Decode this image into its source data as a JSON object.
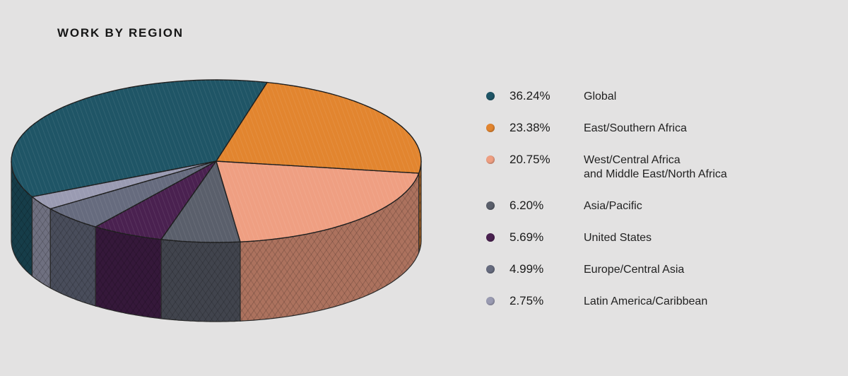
{
  "title": "WORK BY REGION",
  "chart_data": {
    "type": "pie",
    "title": "WORK BY REGION",
    "slices": [
      {
        "label": "Global",
        "value": 36.24,
        "display": "36.24%",
        "color": "#1f5566"
      },
      {
        "label": "East/Southern Africa",
        "value": 23.38,
        "display": "23.38%",
        "color": "#e2852f"
      },
      {
        "label": "West/Central Africa\nand Middle East/North Africa",
        "value": 20.75,
        "display": "20.75%",
        "color": "#ef9f82"
      },
      {
        "label": "Asia/Pacific",
        "value": 6.2,
        "display": "6.20%",
        "color": "#5a5f6b"
      },
      {
        "label": "United States",
        "value": 5.69,
        "display": "5.69%",
        "color": "#4a2150"
      },
      {
        "label": "Europe/Central Asia",
        "value": 4.99,
        "display": "4.99%",
        "color": "#666b7e"
      },
      {
        "label": "Latin America/Caribbean",
        "value": 2.75,
        "display": "2.75%",
        "color": "#9a9bb2"
      }
    ],
    "legend_position": "right"
  }
}
